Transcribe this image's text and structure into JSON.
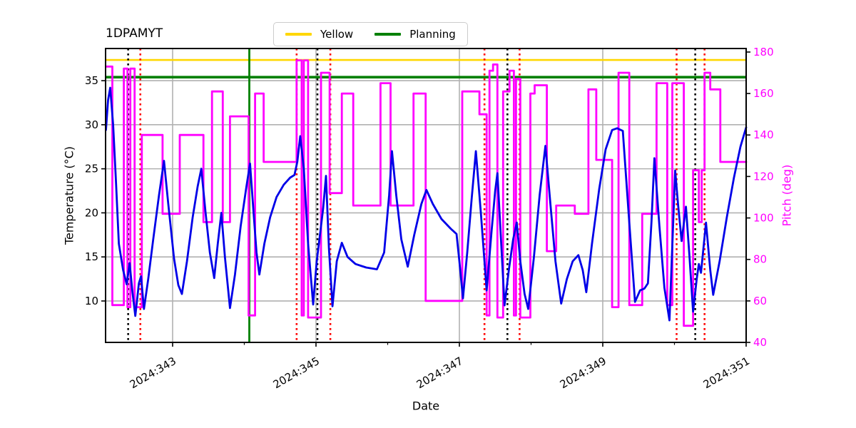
{
  "title": "1DPAMYT",
  "legend": {
    "items": [
      {
        "label": "Yellow",
        "color": "#FFD700"
      },
      {
        "label": "Planning",
        "color": "#008000"
      }
    ]
  },
  "axes": {
    "x": {
      "label": "Date",
      "tick_labels": [
        "2024:343",
        "2024:345",
        "2024:347",
        "2024:349",
        "2024:351"
      ],
      "tick_days": [
        343,
        345,
        347,
        349,
        351
      ],
      "minor_tick_days": [
        344,
        346,
        348,
        350
      ],
      "lim": [
        342.065,
        351.0
      ]
    },
    "y_left": {
      "label": "Temperature (°C)",
      "ticks": [
        10,
        15,
        20,
        25,
        30,
        35
      ],
      "lim": [
        5.3,
        38.65
      ],
      "color": "#000000"
    },
    "y_right": {
      "label": "Pitch (deg)",
      "ticks": [
        40,
        60,
        80,
        100,
        120,
        140,
        160,
        180
      ],
      "lim": [
        40,
        181.7
      ],
      "color": "#FF00FF"
    }
  },
  "chart_data": {
    "type": "line",
    "title": "1DPAMYT",
    "xlabel": "Date",
    "x_unit": "year:day-of-year",
    "xlim": [
      342.065,
      351.0
    ],
    "grid": true,
    "grid_color": "#B1B1B1",
    "legend_position": "upper center",
    "series": [
      {
        "name": "Temperature",
        "axis": "left",
        "color": "#0000E8",
        "style": "solid",
        "points": [
          [
            342.07,
            29.4
          ],
          [
            342.1,
            32.8
          ],
          [
            342.13,
            34.2
          ],
          [
            342.17,
            30.0
          ],
          [
            342.21,
            23.5
          ],
          [
            342.25,
            16.5
          ],
          [
            342.31,
            13.5
          ],
          [
            342.36,
            11.9
          ],
          [
            342.4,
            14.3
          ],
          [
            342.44,
            11.0
          ],
          [
            342.48,
            8.3
          ],
          [
            342.53,
            12.0
          ],
          [
            342.56,
            12.8
          ],
          [
            342.6,
            9.1
          ],
          [
            342.66,
            12.5
          ],
          [
            342.73,
            17.0
          ],
          [
            342.81,
            22.0
          ],
          [
            342.88,
            25.9
          ],
          [
            342.94,
            21.0
          ],
          [
            343.02,
            14.8
          ],
          [
            343.08,
            11.8
          ],
          [
            343.13,
            10.8
          ],
          [
            343.2,
            14.5
          ],
          [
            343.28,
            19.5
          ],
          [
            343.35,
            23.0
          ],
          [
            343.4,
            25.0
          ],
          [
            343.46,
            20.0
          ],
          [
            343.52,
            15.5
          ],
          [
            343.58,
            12.6
          ],
          [
            343.63,
            16.5
          ],
          [
            343.68,
            20.0
          ],
          [
            343.73,
            15.0
          ],
          [
            343.8,
            9.2
          ],
          [
            343.87,
            13.0
          ],
          [
            343.95,
            18.5
          ],
          [
            344.03,
            23.0
          ],
          [
            344.08,
            25.6
          ],
          [
            344.13,
            20.0
          ],
          [
            344.17,
            15.5
          ],
          [
            344.21,
            13.0
          ],
          [
            344.28,
            16.5
          ],
          [
            344.36,
            19.5
          ],
          [
            344.45,
            21.8
          ],
          [
            344.55,
            23.2
          ],
          [
            344.64,
            24.0
          ],
          [
            344.7,
            24.3
          ],
          [
            344.74,
            25.8
          ],
          [
            344.78,
            28.7
          ],
          [
            344.83,
            25.0
          ],
          [
            344.89,
            16.5
          ],
          [
            344.96,
            9.6
          ],
          [
            345.01,
            14.5
          ],
          [
            345.06,
            17.8
          ],
          [
            345.1,
            20.5
          ],
          [
            345.14,
            24.2
          ],
          [
            345.18,
            16.0
          ],
          [
            345.23,
            9.4
          ],
          [
            345.29,
            14.5
          ],
          [
            345.36,
            16.6
          ],
          [
            345.44,
            15.0
          ],
          [
            345.55,
            14.2
          ],
          [
            345.7,
            13.8
          ],
          [
            345.85,
            13.6
          ],
          [
            345.95,
            15.5
          ],
          [
            346.02,
            22.0
          ],
          [
            346.06,
            27.0
          ],
          [
            346.12,
            22.0
          ],
          [
            346.19,
            17.0
          ],
          [
            346.28,
            13.9
          ],
          [
            346.37,
            17.5
          ],
          [
            346.47,
            21.0
          ],
          [
            346.54,
            22.6
          ],
          [
            346.63,
            21.0
          ],
          [
            346.75,
            19.3
          ],
          [
            346.88,
            18.2
          ],
          [
            346.96,
            17.6
          ],
          [
            347.0,
            14.5
          ],
          [
            347.05,
            10.3
          ],
          [
            347.11,
            15.5
          ],
          [
            347.17,
            21.5
          ],
          [
            347.23,
            27.0
          ],
          [
            347.3,
            20.0
          ],
          [
            347.38,
            11.2
          ],
          [
            347.45,
            18.0
          ],
          [
            347.5,
            22.5
          ],
          [
            347.53,
            24.5
          ],
          [
            347.58,
            17.0
          ],
          [
            347.63,
            9.5
          ],
          [
            347.69,
            13.5
          ],
          [
            347.75,
            17.0
          ],
          [
            347.8,
            18.9
          ],
          [
            347.85,
            14.5
          ],
          [
            347.91,
            10.8
          ],
          [
            347.96,
            9.1
          ],
          [
            348.04,
            15.0
          ],
          [
            348.12,
            22.0
          ],
          [
            348.2,
            27.6
          ],
          [
            348.27,
            21.0
          ],
          [
            348.34,
            14.5
          ],
          [
            348.42,
            9.7
          ],
          [
            348.5,
            12.5
          ],
          [
            348.58,
            14.5
          ],
          [
            348.66,
            15.2
          ],
          [
            348.72,
            13.5
          ],
          [
            348.77,
            11.0
          ],
          [
            348.85,
            16.5
          ],
          [
            348.95,
            22.7
          ],
          [
            349.04,
            27.2
          ],
          [
            349.13,
            29.4
          ],
          [
            349.2,
            29.6
          ],
          [
            349.28,
            29.3
          ],
          [
            349.36,
            20.0
          ],
          [
            349.45,
            9.9
          ],
          [
            349.52,
            11.2
          ],
          [
            349.58,
            11.4
          ],
          [
            349.63,
            12.0
          ],
          [
            349.68,
            19.0
          ],
          [
            349.72,
            26.2
          ],
          [
            349.79,
            18.5
          ],
          [
            349.86,
            11.5
          ],
          [
            349.93,
            7.8
          ],
          [
            350.01,
            24.8
          ],
          [
            350.05,
            21.0
          ],
          [
            350.1,
            16.8
          ],
          [
            350.16,
            20.7
          ],
          [
            350.21,
            15.0
          ],
          [
            350.26,
            8.8
          ],
          [
            350.31,
            12.5
          ],
          [
            350.34,
            14.2
          ],
          [
            350.37,
            13.2
          ],
          [
            350.44,
            18.9
          ],
          [
            350.5,
            13.5
          ],
          [
            350.54,
            10.7
          ],
          [
            350.63,
            14.5
          ],
          [
            350.73,
            19.5
          ],
          [
            350.83,
            24.0
          ],
          [
            350.92,
            27.5
          ],
          [
            351.0,
            29.7
          ]
        ]
      },
      {
        "name": "Pitch",
        "axis": "right",
        "color": "#FF00FF",
        "style": "step-post",
        "points": [
          [
            342.07,
            173
          ],
          [
            342.16,
            58
          ],
          [
            342.32,
            172
          ],
          [
            342.37,
            57
          ],
          [
            342.41,
            172
          ],
          [
            342.47,
            57
          ],
          [
            342.57,
            140
          ],
          [
            342.86,
            102
          ],
          [
            343.1,
            140
          ],
          [
            343.43,
            98
          ],
          [
            343.55,
            161
          ],
          [
            343.7,
            98
          ],
          [
            343.8,
            149
          ],
          [
            344.06,
            53
          ],
          [
            344.15,
            160
          ],
          [
            344.27,
            127
          ],
          [
            344.73,
            176
          ],
          [
            344.8,
            53
          ],
          [
            344.83,
            176
          ],
          [
            344.89,
            52
          ],
          [
            345.07,
            170
          ],
          [
            345.19,
            112
          ],
          [
            345.36,
            160
          ],
          [
            345.52,
            106
          ],
          [
            345.9,
            165
          ],
          [
            346.04,
            106
          ],
          [
            346.36,
            160
          ],
          [
            346.53,
            60
          ],
          [
            347.04,
            161
          ],
          [
            347.28,
            150
          ],
          [
            347.38,
            53
          ],
          [
            347.42,
            171
          ],
          [
            347.47,
            174
          ],
          [
            347.53,
            52
          ],
          [
            347.61,
            161
          ],
          [
            347.7,
            171
          ],
          [
            347.76,
            53
          ],
          [
            347.79,
            167
          ],
          [
            347.85,
            52
          ],
          [
            347.99,
            160
          ],
          [
            348.05,
            164
          ],
          [
            348.22,
            84
          ],
          [
            348.35,
            106
          ],
          [
            348.61,
            102
          ],
          [
            348.8,
            162
          ],
          [
            348.91,
            128
          ],
          [
            349.13,
            57
          ],
          [
            349.22,
            170
          ],
          [
            349.37,
            58
          ],
          [
            349.55,
            102
          ],
          [
            349.75,
            165
          ],
          [
            349.9,
            58
          ],
          [
            349.97,
            165
          ],
          [
            350.13,
            48
          ],
          [
            350.26,
            123
          ],
          [
            350.34,
            98
          ],
          [
            350.38,
            123
          ],
          [
            350.42,
            170
          ],
          [
            350.5,
            162
          ],
          [
            350.64,
            127
          ]
        ]
      }
    ],
    "hlines": [
      {
        "label": "Yellow",
        "temp_value": 37.35,
        "color": "#FFD700",
        "width": 2.6
      },
      {
        "label": "Planning",
        "temp_value": 35.4,
        "color": "#008000",
        "width": 3.6
      }
    ],
    "vlines": {
      "green_solid": [
        344.07
      ],
      "black_dotted": [
        342.38,
        345.02,
        347.67,
        350.29
      ],
      "red_dotted": [
        342.55,
        344.73,
        345.2,
        347.35,
        347.84,
        350.03,
        350.42
      ]
    }
  }
}
